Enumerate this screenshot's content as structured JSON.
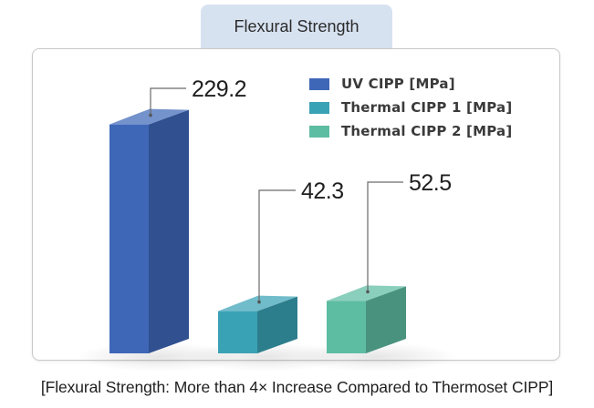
{
  "chart_data": {
    "type": "bar",
    "title": "Flexural Strength",
    "caption": "[Flexural Strength: More than 4× Increase Compared to Thermoset CIPP]",
    "categories": [
      "UV CIPP [MPa]",
      "Thermal CIPP 1 [MPa]",
      "Thermal CIPP 2 [MPa]"
    ],
    "values": [
      229.2,
      42.3,
      52.5
    ],
    "value_labels": [
      "229.2",
      "42.3",
      "52.5"
    ],
    "legend_position": "top-right",
    "series_colors": [
      "#3e67b8",
      "#3aa2b5",
      "#5dbda2"
    ],
    "xlabel": "",
    "ylabel": ""
  }
}
